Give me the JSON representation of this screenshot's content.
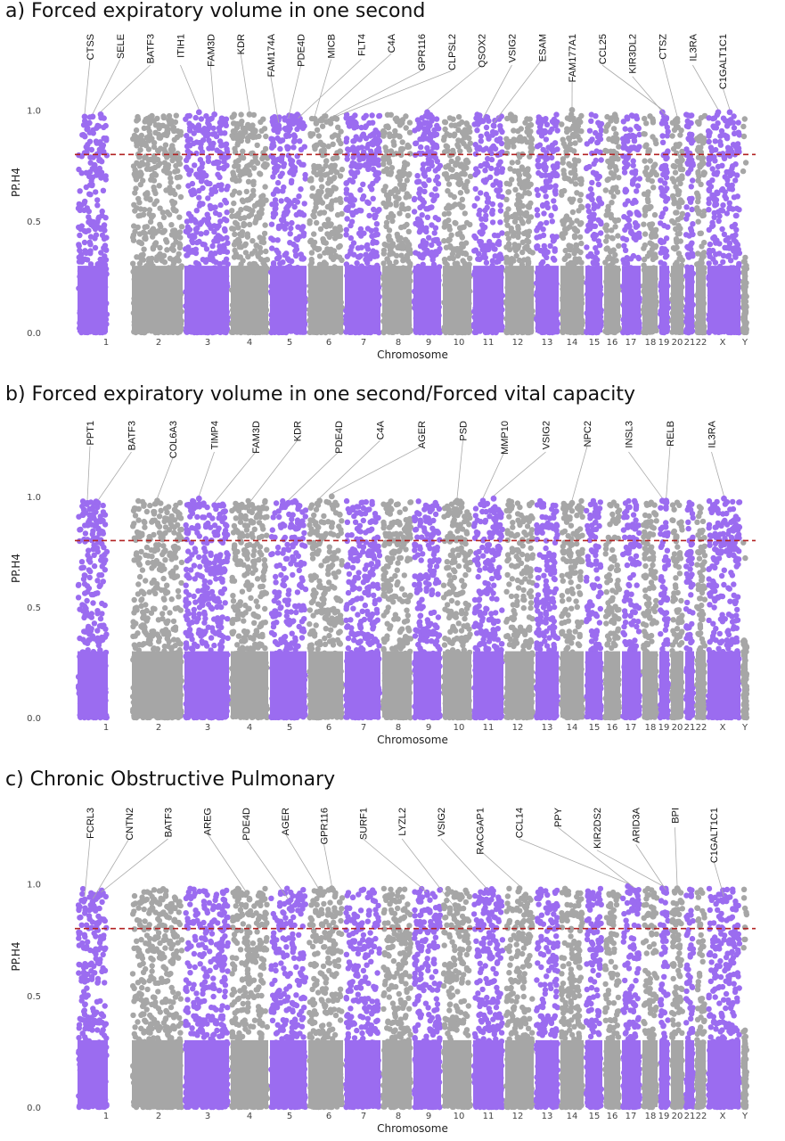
{
  "colors": {
    "purple": "#9b6cf0",
    "grey": "#a6a6a6",
    "threshold": "#b22222",
    "label_line": "#aaaaaa"
  },
  "chart_data": [
    {
      "type": "scatter",
      "subtype": "manhattan",
      "title": "a) Forced expiratory volume in one second",
      "xlabel": "Chromosome",
      "ylabel": "PP.H4",
      "ylim": [
        0,
        1.35
      ],
      "yticks": [
        "0.0",
        "0.5",
        "1.0"
      ],
      "threshold": 0.8,
      "grid": false,
      "chromosomes": [
        "1",
        "2",
        "3",
        "4",
        "5",
        "6",
        "7",
        "8",
        "9",
        "10",
        "11",
        "12",
        "13",
        "14",
        "15",
        "16",
        "17",
        "18",
        "19",
        "20",
        "21",
        "22",
        "X",
        "Y"
      ],
      "gene_labels": [
        {
          "gene": "CTSS",
          "chr": "1",
          "pp": 0.97
        },
        {
          "gene": "SELE",
          "chr": "1",
          "pp": 0.97
        },
        {
          "gene": "BATF3",
          "chr": "1",
          "pp": 0.98
        },
        {
          "gene": "ITIH1",
          "chr": "3",
          "pp": 0.99
        },
        {
          "gene": "FAM3D",
          "chr": "3",
          "pp": 0.98
        },
        {
          "gene": "KDR",
          "chr": "4",
          "pp": 0.98
        },
        {
          "gene": "FAM174A",
          "chr": "5",
          "pp": 0.93
        },
        {
          "gene": "PDE4D",
          "chr": "5",
          "pp": 0.95
        },
        {
          "gene": "MICB",
          "chr": "6",
          "pp": 0.96
        },
        {
          "gene": "FLT4",
          "chr": "5",
          "pp": 0.95
        },
        {
          "gene": "C4A",
          "chr": "6",
          "pp": 0.96
        },
        {
          "gene": "GPR116",
          "chr": "6",
          "pp": 0.95
        },
        {
          "gene": "CLPSL2",
          "chr": "6",
          "pp": 0.96
        },
        {
          "gene": "QSOX2",
          "chr": "9",
          "pp": 0.99
        },
        {
          "gene": "VSIG2",
          "chr": "11",
          "pp": 0.95
        },
        {
          "gene": "ESAM",
          "chr": "11",
          "pp": 0.93
        },
        {
          "gene": "FAM177A1",
          "chr": "14",
          "pp": 1.0
        },
        {
          "gene": "CCL25",
          "chr": "19",
          "pp": 0.99
        },
        {
          "gene": "KIR3DL2",
          "chr": "19",
          "pp": 0.96
        },
        {
          "gene": "CTSZ",
          "chr": "20",
          "pp": 0.96
        },
        {
          "gene": "IL3RA",
          "chr": "X",
          "pp": 0.99
        },
        {
          "gene": "C1GALT1C1",
          "chr": "X",
          "pp": 0.99
        }
      ]
    },
    {
      "type": "scatter",
      "subtype": "manhattan",
      "title": "b) Forced expiratory volume in one second/Forced vital capacity",
      "xlabel": "Chromosome",
      "ylabel": "PP.H4",
      "ylim": [
        0,
        1.35
      ],
      "yticks": [
        "0.0",
        "0.5",
        "1.0"
      ],
      "threshold": 0.8,
      "grid": false,
      "chromosomes": [
        "1",
        "2",
        "3",
        "4",
        "5",
        "6",
        "7",
        "8",
        "9",
        "10",
        "11",
        "12",
        "13",
        "14",
        "15",
        "16",
        "17",
        "18",
        "19",
        "20",
        "21",
        "22",
        "X",
        "Y"
      ],
      "gene_labels": [
        {
          "gene": "PPT1",
          "chr": "1",
          "pp": 0.97
        },
        {
          "gene": "BATF3",
          "chr": "1",
          "pp": 0.97
        },
        {
          "gene": "COL6A3",
          "chr": "2",
          "pp": 0.98
        },
        {
          "gene": "TIMP4",
          "chr": "3",
          "pp": 0.99
        },
        {
          "gene": "FAM3D",
          "chr": "3",
          "pp": 0.96
        },
        {
          "gene": "KDR",
          "chr": "4",
          "pp": 0.96
        },
        {
          "gene": "PDE4D",
          "chr": "5",
          "pp": 0.97
        },
        {
          "gene": "C4A",
          "chr": "6",
          "pp": 0.98
        },
        {
          "gene": "AGER",
          "chr": "6",
          "pp": 1.0
        },
        {
          "gene": "PSD",
          "chr": "10",
          "pp": 0.98
        },
        {
          "gene": "MMP10",
          "chr": "11",
          "pp": 0.98
        },
        {
          "gene": "VSIG2",
          "chr": "11",
          "pp": 0.99
        },
        {
          "gene": "NPC2",
          "chr": "14",
          "pp": 0.97
        },
        {
          "gene": "INSL3",
          "chr": "19",
          "pp": 0.98
        },
        {
          "gene": "RELB",
          "chr": "19",
          "pp": 0.98
        },
        {
          "gene": "IL3RA",
          "chr": "X",
          "pp": 0.99
        }
      ]
    },
    {
      "type": "scatter",
      "subtype": "manhattan",
      "title": "c) Chronic Obstructive Pulmonary",
      "xlabel": "Chromosome",
      "ylabel": "PP.H4",
      "ylim": [
        0,
        1.35
      ],
      "yticks": [
        "0.0",
        "0.5",
        "1.0"
      ],
      "threshold": 0.8,
      "grid": false,
      "chromosomes": [
        "1",
        "2",
        "3",
        "4",
        "5",
        "6",
        "7",
        "8",
        "9",
        "10",
        "11",
        "12",
        "13",
        "14",
        "15",
        "16",
        "17",
        "18",
        "19",
        "20",
        "21",
        "22",
        "X",
        "Y"
      ],
      "gene_labels": [
        {
          "gene": "FCRL3",
          "chr": "1",
          "pp": 0.93
        },
        {
          "gene": "CNTN2",
          "chr": "1",
          "pp": 0.92
        },
        {
          "gene": "BATF3",
          "chr": "1",
          "pp": 0.95
        },
        {
          "gene": "AREG",
          "chr": "4",
          "pp": 0.93
        },
        {
          "gene": "PDE4D",
          "chr": "5",
          "pp": 0.92
        },
        {
          "gene": "AGER",
          "chr": "6",
          "pp": 0.96
        },
        {
          "gene": "GPR116",
          "chr": "6",
          "pp": 0.98
        },
        {
          "gene": "SURF1",
          "chr": "9",
          "pp": 0.95
        },
        {
          "gene": "LYZL2",
          "chr": "10",
          "pp": 0.87
        },
        {
          "gene": "VSIG2",
          "chr": "11",
          "pp": 0.96
        },
        {
          "gene": "RACGAP1",
          "chr": "12",
          "pp": 0.98
        },
        {
          "gene": "CCL14",
          "chr": "17",
          "pp": 0.99
        },
        {
          "gene": "PPY",
          "chr": "17",
          "pp": 0.97
        },
        {
          "gene": "KIR2DS2",
          "chr": "19",
          "pp": 0.98
        },
        {
          "gene": "ARID3A",
          "chr": "19",
          "pp": 0.96
        },
        {
          "gene": "BPI",
          "chr": "20",
          "pp": 0.98
        },
        {
          "gene": "C1GALT1C1",
          "chr": "X",
          "pp": 0.93
        }
      ]
    }
  ]
}
